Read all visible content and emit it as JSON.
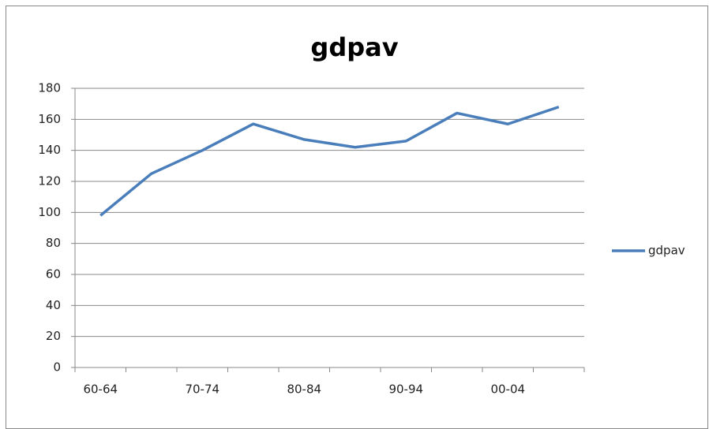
{
  "chart_data": {
    "type": "line",
    "title": "gdpav",
    "categories": [
      "60-64",
      null,
      "70-74",
      null,
      "80-84",
      null,
      "90-94",
      null,
      "00-04",
      null
    ],
    "series": [
      {
        "name": "gdpav",
        "color": "#4a7ebb",
        "values": [
          98,
          125,
          140,
          157,
          147,
          142,
          146,
          164,
          157,
          168
        ]
      }
    ],
    "ylim": [
      0,
      180
    ],
    "yticks": [
      0,
      20,
      40,
      60,
      80,
      100,
      120,
      140,
      160,
      180
    ],
    "grid": true,
    "legend": "right"
  }
}
